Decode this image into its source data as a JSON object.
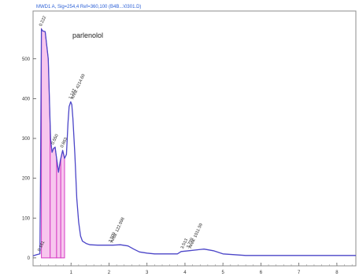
{
  "chart_data": {
    "type": "line",
    "title": "MWD1 A, Sig=254,4 Ref=360,100 (B4B...\\0301.D)",
    "annotation": "parlenolol",
    "xlim": [
      0,
      8.5
    ],
    "ylim": [
      -20,
      620
    ],
    "y_ticks": [
      0,
      100,
      200,
      300,
      400,
      500
    ],
    "x_ticks": [
      1,
      2,
      3,
      4,
      5,
      6,
      7,
      8
    ],
    "x_tick_labels": [
      "1",
      "2",
      "3",
      "4",
      "5",
      "6",
      "7",
      "8"
    ],
    "grid": false,
    "series": [
      {
        "color": "#4b45c8",
        "x": [
          0,
          0.1,
          0.18,
          0.2,
          0.22,
          0.25,
          0.32,
          0.4,
          0.46,
          0.5,
          0.54,
          0.58,
          0.62,
          0.67,
          0.72,
          0.78,
          0.83,
          0.88,
          0.92,
          0.95,
          0.99,
          1.02,
          1.05,
          1.1,
          1.15,
          1.2,
          1.25,
          1.3,
          1.4,
          1.5,
          1.7,
          1.9,
          2.1,
          2.3,
          2.5,
          2.65,
          2.8,
          3.0,
          3.2,
          3.5,
          3.8,
          3.9,
          4.1,
          4.5,
          4.75,
          5.0,
          5.3,
          5.6,
          6.0,
          7.0,
          8.0,
          8.5
        ],
        "y": [
          5,
          8,
          10,
          240,
          575,
          570,
          568,
          500,
          300,
          265,
          275,
          278,
          250,
          215,
          245,
          270,
          250,
          260,
          340,
          380,
          392,
          385,
          350,
          260,
          150,
          90,
          55,
          42,
          36,
          33,
          32,
          32,
          32,
          33,
          30,
          22,
          15,
          12,
          10,
          10,
          10,
          16,
          18,
          22,
          18,
          10,
          8,
          6,
          6,
          6,
          6,
          6
        ]
      }
    ],
    "peak_labels": [
      {
        "x": 0.18,
        "y": 10,
        "text": "0.161"
      },
      {
        "x": 0.22,
        "y": 575,
        "text": "0.222"
      },
      {
        "x": 0.54,
        "y": 278,
        "text": "0.550"
      },
      {
        "x": 0.78,
        "y": 270,
        "text": "0.863"
      },
      {
        "x": 1.0,
        "y": 392,
        "text": "1.142"
      },
      {
        "x": 1.06,
        "y": 392,
        "text": "Area: 4214.60"
      },
      {
        "x": 2.05,
        "y": 32,
        "text": "2.509"
      },
      {
        "x": 2.1,
        "y": 32,
        "text": "Area: 122.098"
      },
      {
        "x": 3.95,
        "y": 16,
        "text": "3.513"
      },
      {
        "x": 4.1,
        "y": 18,
        "text": "3.799"
      },
      {
        "x": 4.16,
        "y": 18,
        "text": "Area: 1011.59"
      }
    ],
    "fill_regions": [
      {
        "x0": 0.22,
        "x1": 0.45
      },
      {
        "x0": 0.45,
        "x1": 0.62
      },
      {
        "x0": 0.62,
        "x1": 0.73
      },
      {
        "x0": 0.73,
        "x1": 0.83
      }
    ]
  }
}
